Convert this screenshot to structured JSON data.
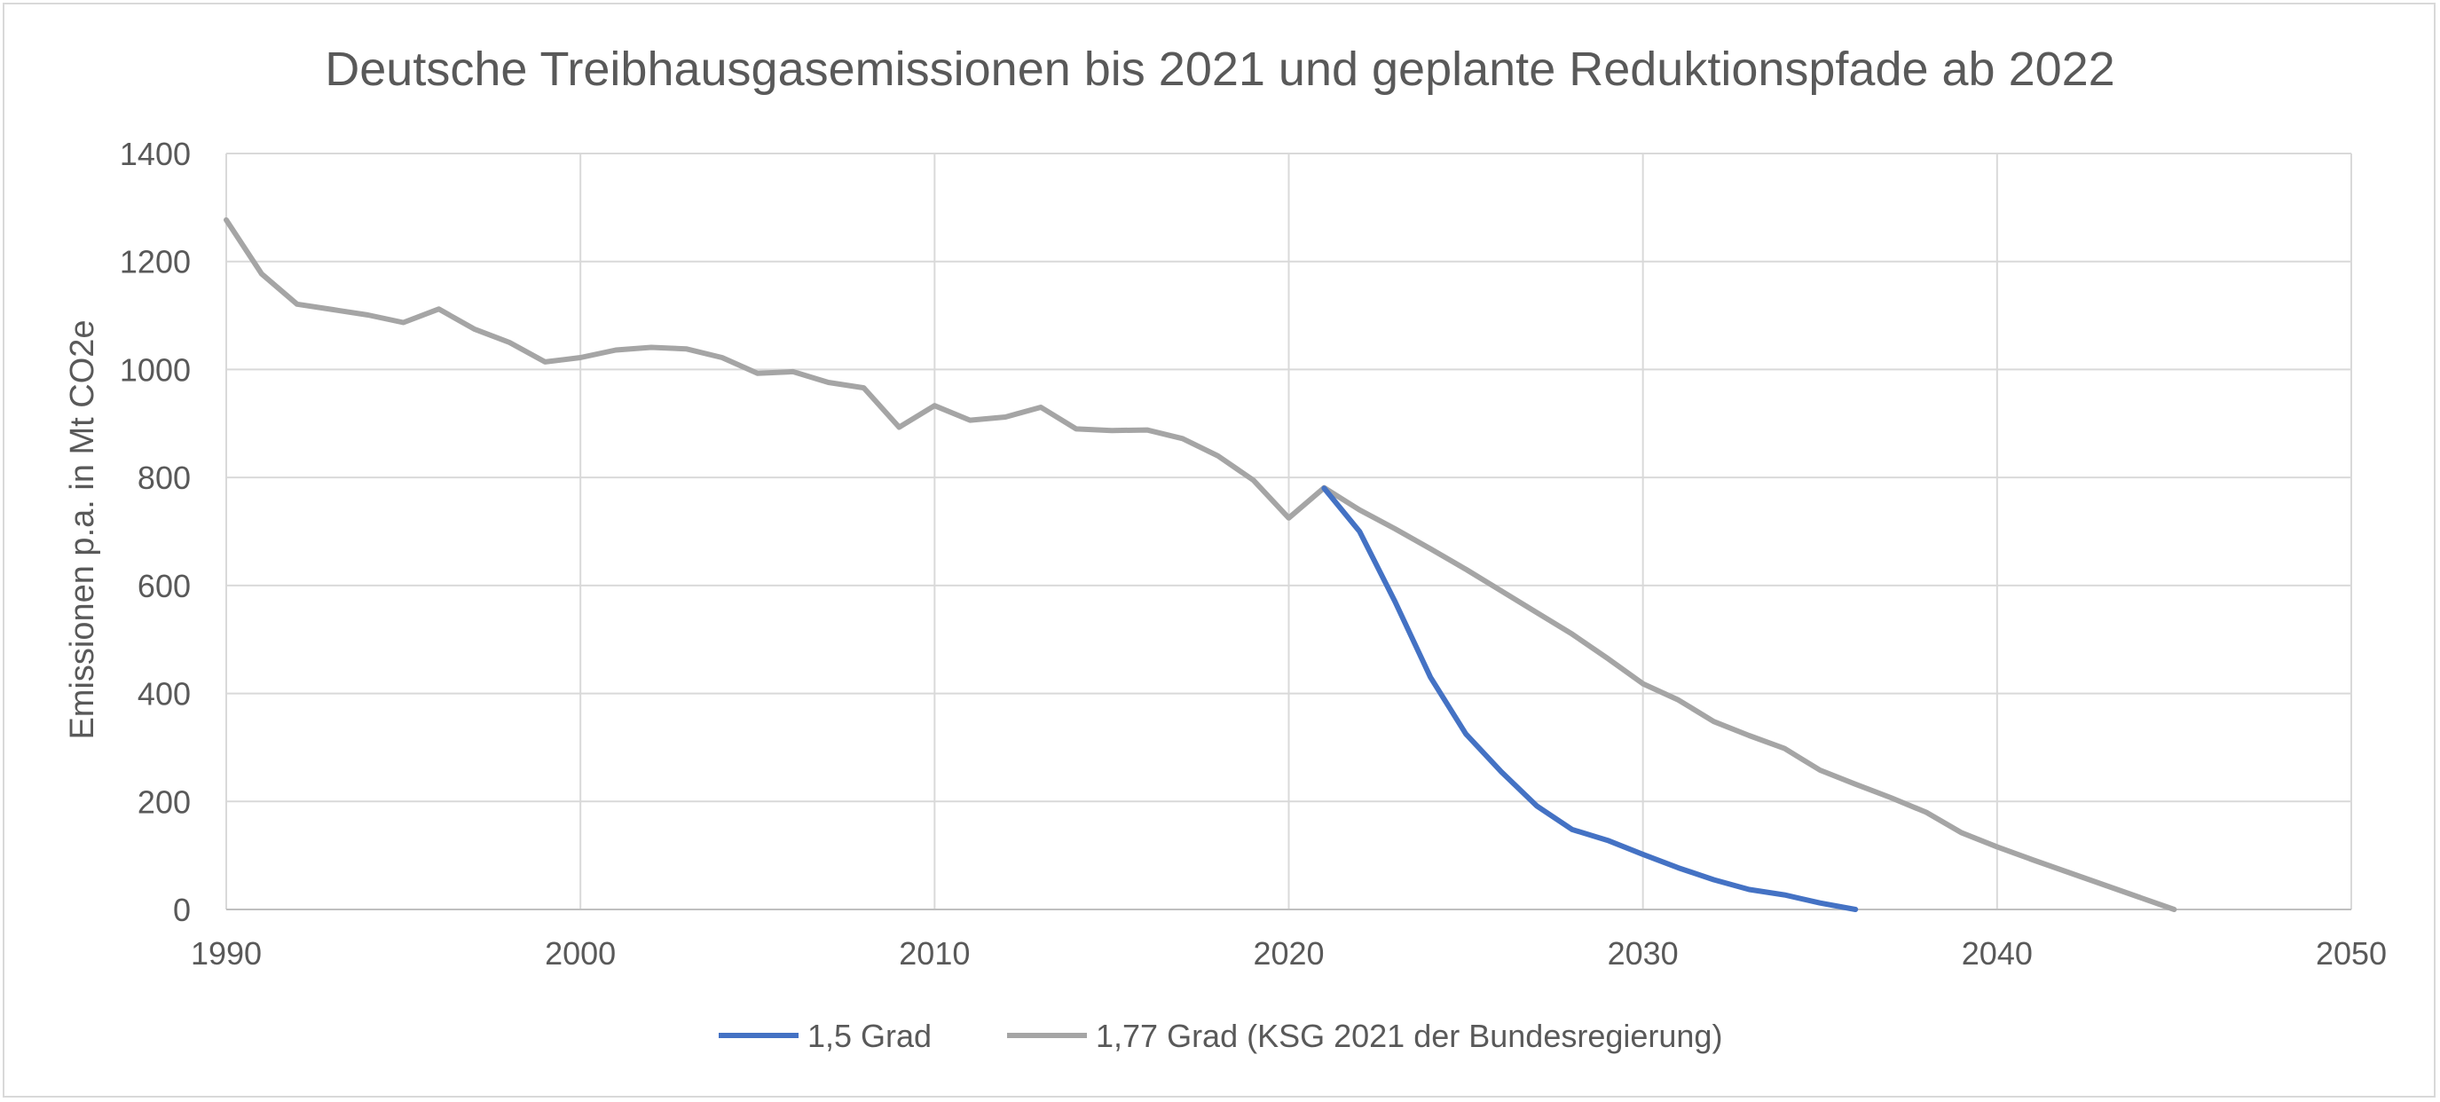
{
  "chart_data": {
    "type": "line",
    "title": "Deutsche Treibhausgasemissionen bis 2021 und geplante Reduktionspfade ab 2022",
    "xlabel": "",
    "ylabel": "Emissionen p.a. in Mt CO2e",
    "xlim": [
      1990,
      2050
    ],
    "ylim": [
      0,
      1400
    ],
    "xticks": [
      "1990",
      "2000",
      "2010",
      "2020",
      "2030",
      "2040",
      "2050"
    ],
    "yticks": [
      "0",
      "200",
      "400",
      "600",
      "800",
      "1000",
      "1200",
      "1400"
    ],
    "grid": true,
    "legend": "bottom",
    "series": [
      {
        "name": "1,5 Grad",
        "color": "#4472c4",
        "x": [
          2021,
          2022,
          2023,
          2024,
          2025,
          2026,
          2027,
          2028,
          2029,
          2030,
          2031,
          2032,
          2033,
          2034,
          2035,
          2036
        ],
        "y": [
          780,
          700,
          570,
          430,
          325,
          255,
          192,
          148,
          128,
          102,
          77,
          55,
          37,
          27,
          12,
          0
        ]
      },
      {
        "name": "1,77 Grad (KSG 2021 der Bundesregierung)",
        "color": "#a5a5a5",
        "x": [
          1990,
          1991,
          1992,
          1993,
          1994,
          1995,
          1996,
          1997,
          1998,
          1999,
          2000,
          2001,
          2002,
          2003,
          2004,
          2005,
          2006,
          2007,
          2008,
          2009,
          2010,
          2011,
          2012,
          2013,
          2014,
          2015,
          2016,
          2017,
          2018,
          2019,
          2020,
          2021,
          2022,
          2023,
          2024,
          2025,
          2026,
          2027,
          2028,
          2029,
          2030,
          2031,
          2032,
          2033,
          2034,
          2035,
          2036,
          2037,
          2038,
          2039,
          2040,
          2041,
          2042,
          2043,
          2044,
          2045
        ],
        "y": [
          1277,
          1177,
          1121,
          1111,
          1101,
          1087,
          1112,
          1075,
          1050,
          1014,
          1022,
          1036,
          1041,
          1038,
          1022,
          993,
          996,
          976,
          966,
          893,
          933,
          906,
          912,
          930,
          890,
          887,
          888,
          872,
          840,
          795,
          725,
          781,
          740,
          705,
          668,
          630,
          590,
          550,
          510,
          465,
          418,
          388,
          348,
          322,
          298,
          258,
          232,
          207,
          180,
          142,
          116,
          92,
          69,
          46,
          23,
          0
        ]
      }
    ]
  }
}
